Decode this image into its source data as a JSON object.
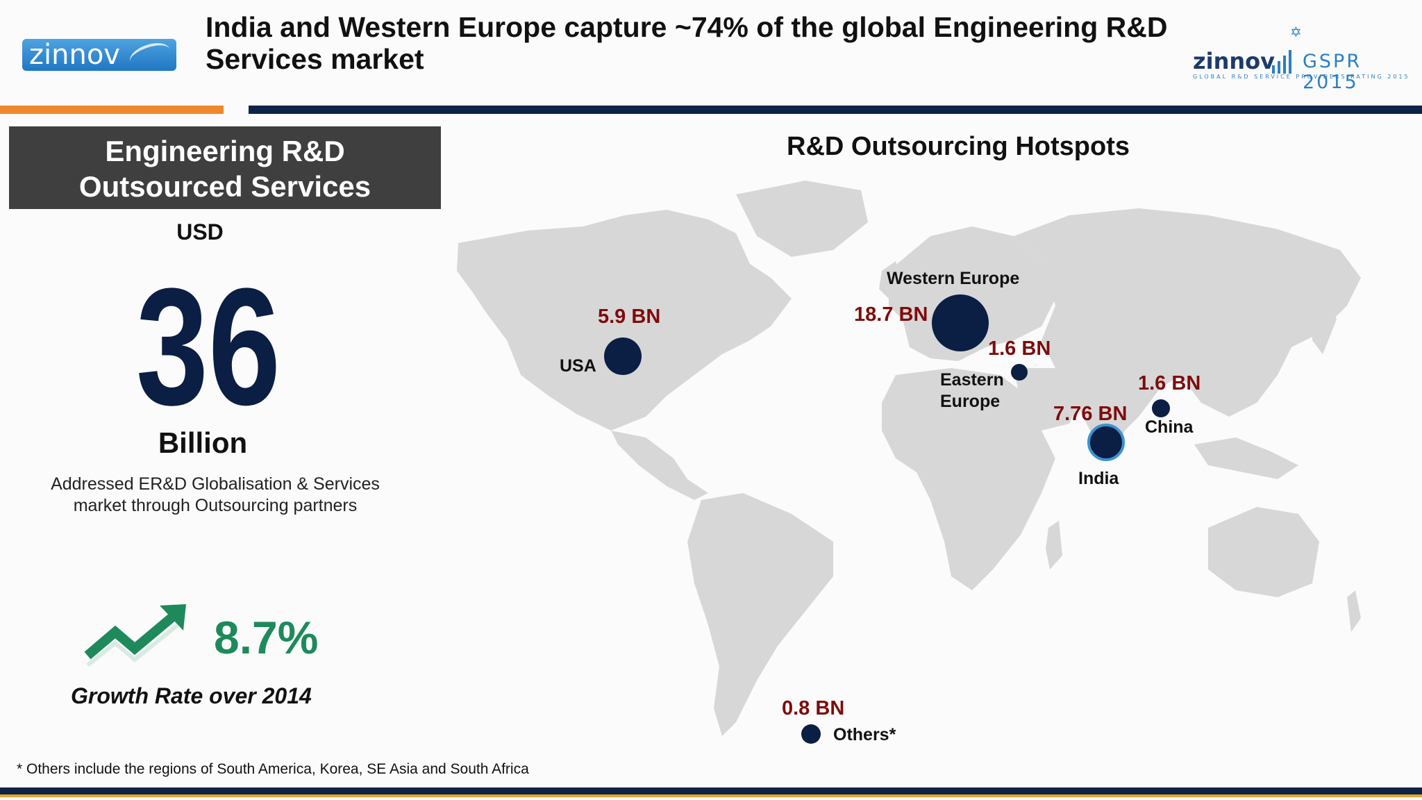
{
  "header": {
    "logo_text": "zinnov",
    "headline": "India and Western Europe capture ~74% of the global Engineering R&D Services market",
    "right_logo": {
      "brand": "zinnov",
      "title": "GSPR 2015",
      "subtitle": "GLOBAL R&D SERVICE PROVIDERS RATING 2015"
    }
  },
  "left_panel": {
    "box_title_line1": "Engineering R&D",
    "box_title_line2": "Outsourced Services",
    "currency": "USD",
    "amount": "36",
    "unit": "Billion",
    "description_line1": "Addressed ER&D Globalisation & Services",
    "description_line2": "market through Outsourcing partners",
    "growth_value": "8.7%",
    "growth_label": "Growth Rate over 2014"
  },
  "map": {
    "title": "R&D Outsourcing Hotspots",
    "regions": [
      {
        "id": "usa",
        "name": "USA",
        "value": "5.9 BN"
      },
      {
        "id": "western-europe",
        "name": "Western Europe",
        "value": "18.7 BN"
      },
      {
        "id": "eastern-europe",
        "name_line1": "Eastern",
        "name_line2": "Europe",
        "value": "1.6 BN"
      },
      {
        "id": "china",
        "name": "China",
        "value": "1.6 BN"
      },
      {
        "id": "india",
        "name": "India",
        "value": "7.76 BN"
      },
      {
        "id": "others",
        "name": "Others*",
        "value": "0.8 BN"
      }
    ]
  },
  "footnote": "* Others include the regions of South America, Korea, SE Asia and South Africa",
  "colors": {
    "navy": "#0e2347",
    "orange": "#f0882b",
    "dark_red": "#7f0b0b",
    "growth_green": "#1e8a5c",
    "map_land": "#d7d7d7"
  }
}
